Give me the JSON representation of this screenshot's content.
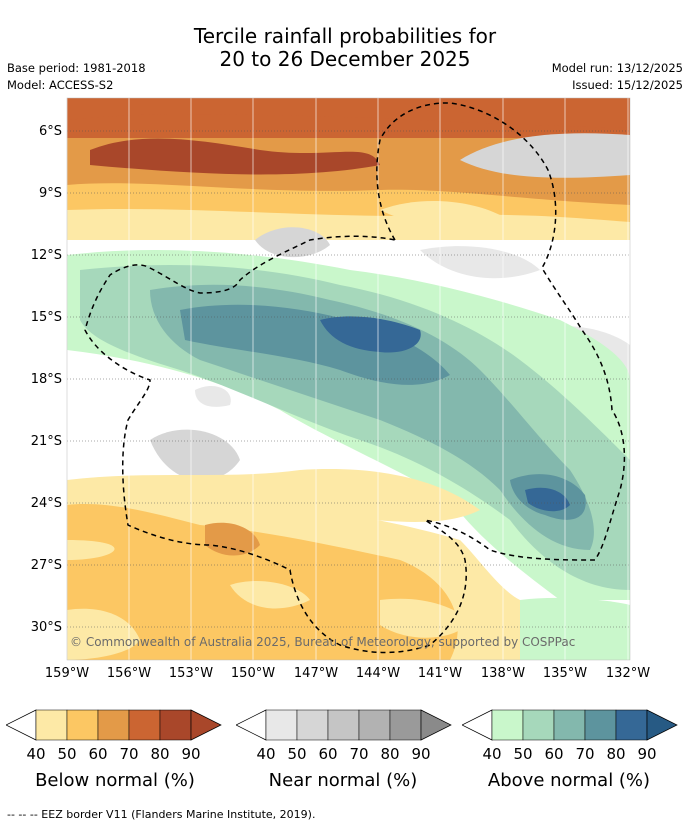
{
  "title_line1": "Tercile rainfall probabilities for",
  "title_line2": "20 to 26 December 2025",
  "meta": {
    "base_period": "Base period: 1981-2018",
    "model": "Model: ACCESS-S2",
    "model_run": "Model run: 13/12/2025",
    "issued": "Issued: 15/12/2025"
  },
  "map": {
    "lat_labels": [
      "6°S",
      "9°S",
      "12°S",
      "15°S",
      "18°S",
      "21°S",
      "24°S",
      "27°S",
      "30°S"
    ],
    "lon_labels": [
      "159°W",
      "156°W",
      "153°W",
      "150°W",
      "147°W",
      "144°W",
      "141°W",
      "138°W",
      "135°W",
      "132°W"
    ],
    "credit": "© Commonwealth of Australia 2025, Bureau of Meteorology, supported by COSPPac"
  },
  "legend": {
    "ticks": [
      "40",
      "50",
      "60",
      "70",
      "80",
      "90"
    ],
    "below": {
      "title": "Below normal (%)",
      "colors": [
        "#fde9a6",
        "#fcc763",
        "#e39a48",
        "#cb6532",
        "#a9472a",
        "#a9472a"
      ]
    },
    "near": {
      "title": "Near normal (%)",
      "colors": [
        "#e8e8e8",
        "#d6d6d6",
        "#c5c5c5",
        "#b2b2b2",
        "#9a9a9a",
        "#8a8a8a"
      ]
    },
    "above": {
      "title": "Above normal (%)",
      "colors": [
        "#c9f7cb",
        "#a6d8bb",
        "#83b8ad",
        "#5d949e",
        "#356896",
        "#275a84"
      ]
    }
  },
  "footer": "--  --  -- EEZ border V11 (Flanders Marine Institute, 2019)."
}
